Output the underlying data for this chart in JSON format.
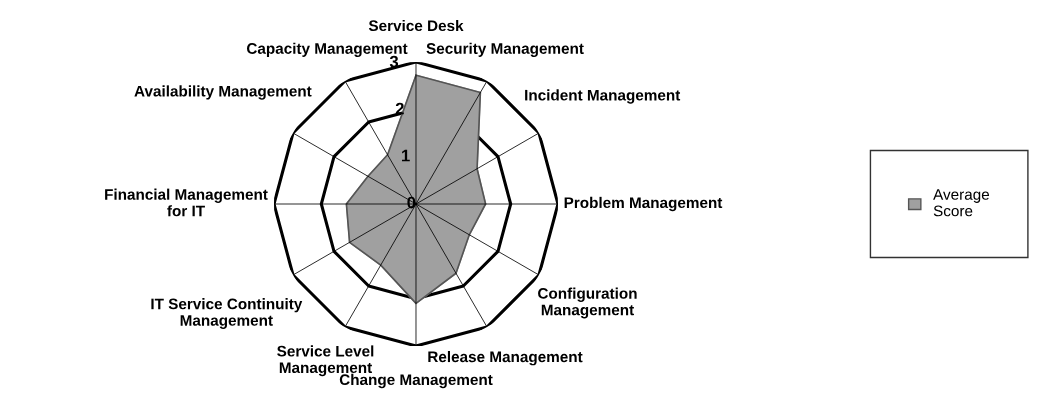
{
  "chart_data": {
    "type": "radar",
    "categories": [
      "Service Desk",
      "Security Management",
      "Incident Management",
      "Problem Management",
      "Configuration\nManagement",
      "Release Management",
      "Change Management",
      "Service Level\nManagement",
      "IT Service Continuity\nManagement",
      "Financial Management\nfor IT",
      "Availability Management",
      "Capacity Management"
    ],
    "series": [
      {
        "name": "Average\nScore",
        "color": "#a0a0a0",
        "values": [
          2.72,
          2.72,
          1.49,
          1.47,
          1.3,
          1.69,
          2.1,
          1.49,
          1.62,
          1.47,
          1.17,
          1.2
        ]
      }
    ],
    "ylim": [
      0,
      3
    ],
    "yticks": [
      0,
      1,
      2,
      3
    ],
    "legend": "right"
  }
}
